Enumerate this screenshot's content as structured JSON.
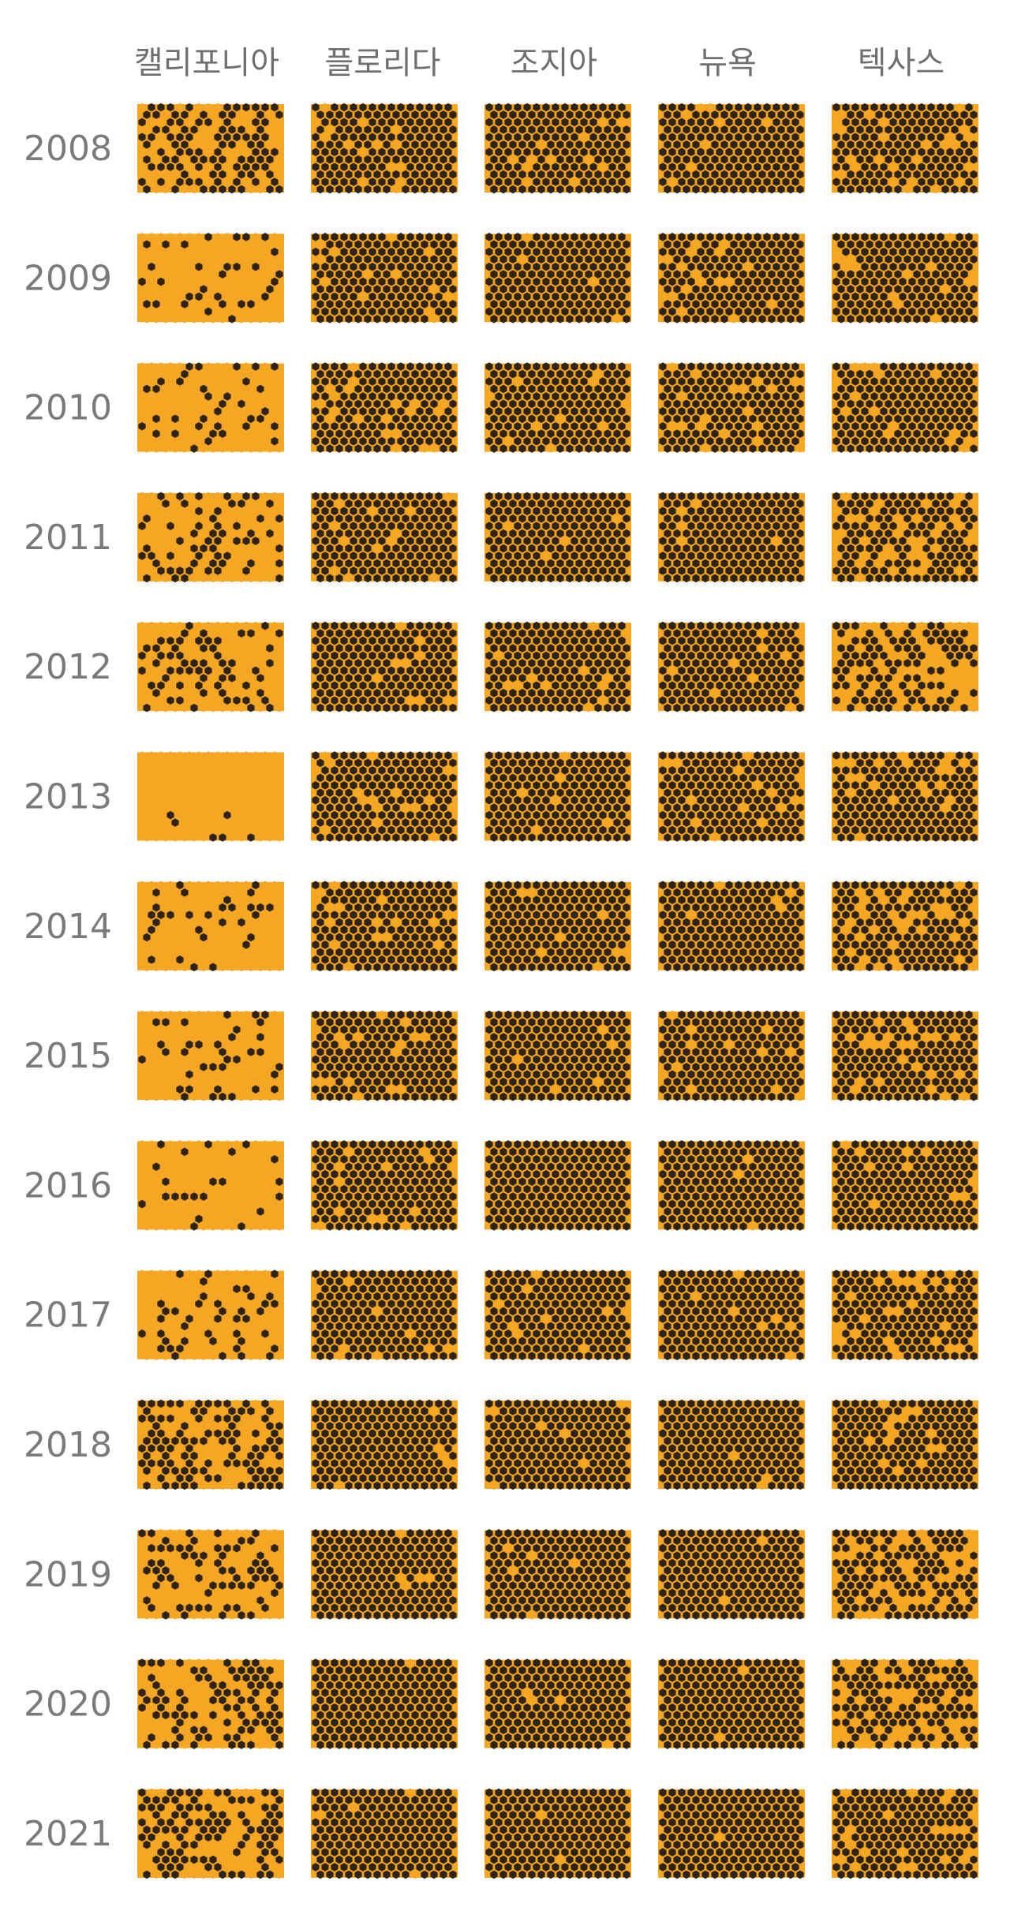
{
  "chart_data": {
    "type": "heatmap",
    "title": "",
    "columns": [
      "캘리포니아",
      "플로리다",
      "조지아",
      "뉴욕",
      "텍사스"
    ],
    "rows": [
      "2008",
      "2009",
      "2010",
      "2011",
      "2012",
      "2013",
      "2014",
      "2015",
      "2016",
      "2017",
      "2018",
      "2019",
      "2020",
      "2021"
    ],
    "cells_per_panel": 180,
    "colors": {
      "filled": "#f5a623",
      "empty": "#2e2314",
      "background": "#ffffff",
      "label": "#777777"
    },
    "filled_share": [
      [
        0.42,
        0.1,
        0.07,
        0.06,
        0.12
      ],
      [
        0.82,
        0.08,
        0.03,
        0.1,
        0.08
      ],
      [
        0.8,
        0.07,
        0.04,
        0.06,
        0.07
      ],
      [
        0.7,
        0.05,
        0.03,
        0.03,
        0.2
      ],
      [
        0.68,
        0.06,
        0.06,
        0.06,
        0.4
      ],
      [
        0.95,
        0.11,
        0.04,
        0.1,
        0.1
      ],
      [
        0.82,
        0.11,
        0.05,
        0.07,
        0.18
      ],
      [
        0.72,
        0.08,
        0.02,
        0.08,
        0.12
      ],
      [
        0.86,
        0.06,
        0.01,
        0.06,
        0.05
      ],
      [
        0.7,
        0.08,
        0.05,
        0.04,
        0.14
      ],
      [
        0.4,
        0.05,
        0.04,
        0.02,
        0.08
      ],
      [
        0.6,
        0.05,
        0.03,
        0.01,
        0.32
      ],
      [
        0.48,
        0.01,
        0.02,
        0.02,
        0.34
      ],
      [
        0.42,
        0.03,
        0.01,
        0.01,
        0.1
      ]
    ]
  }
}
